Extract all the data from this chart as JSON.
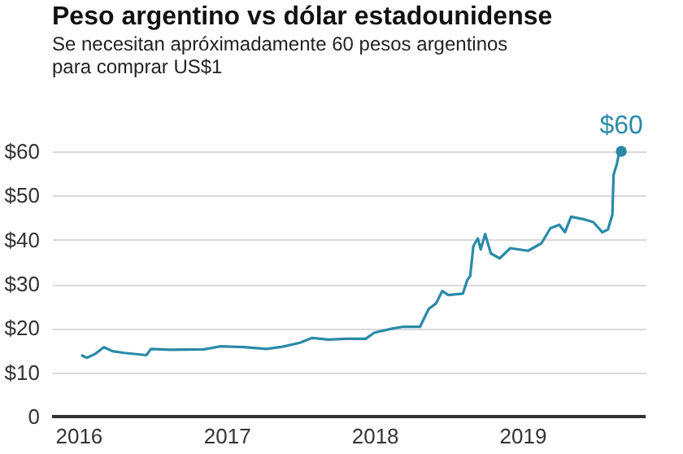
{
  "chart_data": {
    "type": "line",
    "title": "Peso argentino vs dólar estadounidense",
    "subtitle": "Se necesitan apróximadamente 60 pesos argentinos\npara comprar US$1",
    "x": [
      "2016-01-08",
      "2016-01-22",
      "2016-02-12",
      "2016-03-04",
      "2016-03-25",
      "2016-04-23",
      "2016-06-17",
      "2016-06-28",
      "2016-08-14",
      "2016-11-06",
      "2016-12-17",
      "2017-02-14",
      "2017-04-09",
      "2017-05-19",
      "2017-07-01",
      "2017-07-31",
      "2017-09-09",
      "2017-10-23",
      "2017-12-10",
      "2018-01-01",
      "2018-02-14",
      "2018-03-11",
      "2018-04-23",
      "2018-05-15",
      "2018-06-02",
      "2018-06-17",
      "2018-07-02",
      "2018-08-07",
      "2018-08-18",
      "2018-08-25",
      "2018-09-02",
      "2018-09-13",
      "2018-09-20",
      "2018-10-01",
      "2018-10-15",
      "2018-11-06",
      "2018-12-02",
      "2019-01-15",
      "2019-02-17",
      "2019-03-11",
      "2019-04-02",
      "2019-04-16",
      "2019-05-01",
      "2019-06-03",
      "2019-06-25",
      "2019-07-17",
      "2019-07-31",
      "2019-08-11",
      "2019-08-14",
      "2019-08-22",
      "2019-08-26",
      "2019-09-02"
    ],
    "series": [
      {
        "color": "#2a8aa8",
        "values": [
          13.9,
          13.3,
          14.2,
          15.7,
          14.8,
          14.4,
          13.9,
          15.3,
          15.1,
          15.2,
          15.9,
          15.7,
          15.3,
          15.8,
          16.7,
          17.8,
          17.4,
          17.6,
          17.6,
          19.0,
          19.9,
          20.3,
          20.3,
          24.4,
          25.6,
          28.4,
          27.5,
          27.8,
          30.9,
          31.8,
          38.6,
          40.3,
          37.8,
          41.3,
          36.9,
          35.8,
          38.1,
          37.5,
          39.2,
          42.6,
          43.4,
          41.7,
          45.2,
          44.6,
          44.0,
          41.7,
          42.3,
          45.7,
          54.7,
          57.1,
          59.0,
          60
        ]
      }
    ],
    "xlim": [
      "2015-10-28",
      "2019-11-01"
    ],
    "xticks": [
      {
        "value": "2016-01-01",
        "label": "2016"
      },
      {
        "value": "2017-01-01",
        "label": "2017"
      },
      {
        "value": "2018-01-01",
        "label": "2018"
      },
      {
        "value": "2019-01-01",
        "label": "2019"
      }
    ],
    "ylim": [
      0,
      60
    ],
    "yticks": [
      {
        "value": 0,
        "label": "0"
      },
      {
        "value": 10,
        "label": "$10"
      },
      {
        "value": 20,
        "label": "$20"
      },
      {
        "value": 30,
        "label": "$30"
      },
      {
        "value": 40,
        "label": "$40"
      },
      {
        "value": 50,
        "label": "$50"
      },
      {
        "value": 60,
        "label": "$60"
      }
    ],
    "grid": "y",
    "marker": "none",
    "line_style": "solid",
    "annotations": [
      {
        "text": "$60",
        "x": "2019-09-02",
        "y": 60
      }
    ]
  }
}
